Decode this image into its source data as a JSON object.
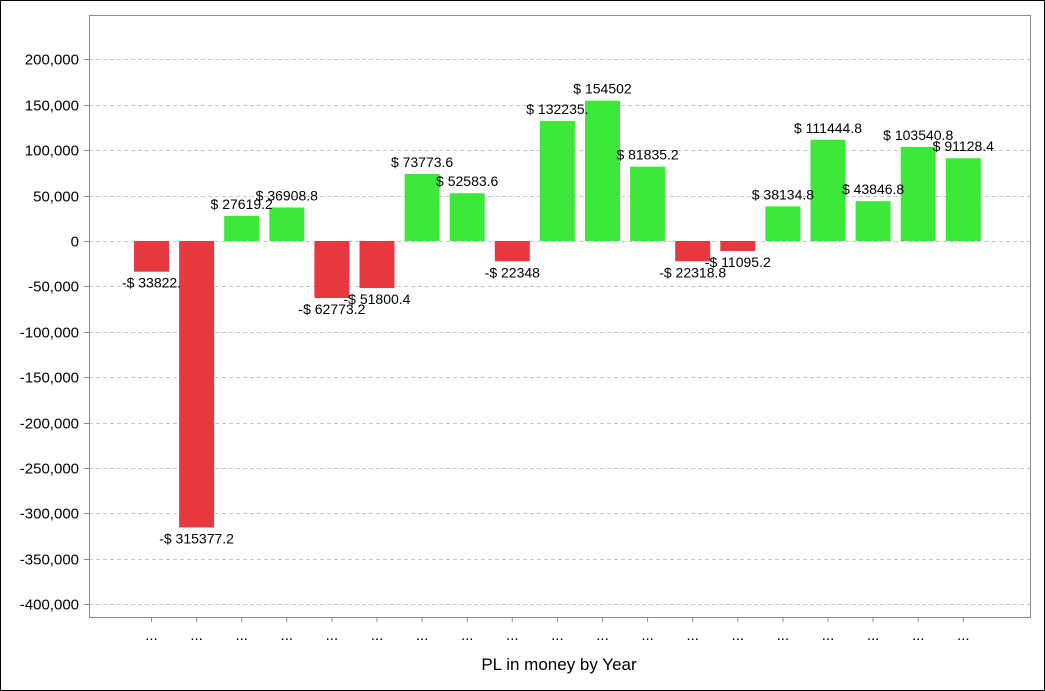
{
  "chart_data": {
    "type": "bar",
    "title": "",
    "xlabel": "PL in money by Year",
    "ylabel": "",
    "ylim": [
      -400000,
      200000
    ],
    "yticks": [
      200000,
      150000,
      100000,
      50000,
      0,
      -50000,
      -100000,
      -150000,
      -200000,
      -250000,
      -300000,
      -350000,
      -400000
    ],
    "ytick_labels": [
      "200,000",
      "150,000",
      "100,000",
      "50,000",
      "0",
      "-50,000",
      "-100,000",
      "-150,000",
      "-200,000",
      "-250,000",
      "-300,000",
      "-350,000",
      "-400,000"
    ],
    "grid": "horizontal dashed",
    "categories": [
      "...",
      "...",
      "...",
      "...",
      "...",
      "...",
      "...",
      "...",
      "...",
      "...",
      "...",
      "...",
      "...",
      "...",
      "...",
      "...",
      "...",
      "...",
      "..."
    ],
    "values": [
      -33822,
      -315377.2,
      27619.2,
      36908.8,
      -62773.2,
      -51800.4,
      73773.6,
      52583.6,
      -22348,
      132235,
      154502,
      81835.2,
      -22318.8,
      -11095.2,
      38134.8,
      111444.8,
      43846.8,
      103540.8,
      91128.4
    ],
    "value_labels": [
      "-$ 33822.",
      "-$ 315377.2",
      "$ 27619.2",
      "$ 36908.8",
      "-$ 62773.2",
      "-$ 51800.4",
      "$ 73773.6",
      "$ 52583.6",
      "-$ 22348",
      "$ 132235.",
      "$ 154502",
      "$ 81835.2",
      "-$ 22318.8",
      "-$ 11095.2",
      "$ 38134.8",
      "$ 111444.8",
      "$ 43846.8",
      "$ 103540.8",
      "$ 91128.4"
    ],
    "colors": {
      "positive": "#3de83b",
      "negative": "#e8383f",
      "grid": "#c8c8c8",
      "axis": "#8c8c8c"
    }
  }
}
